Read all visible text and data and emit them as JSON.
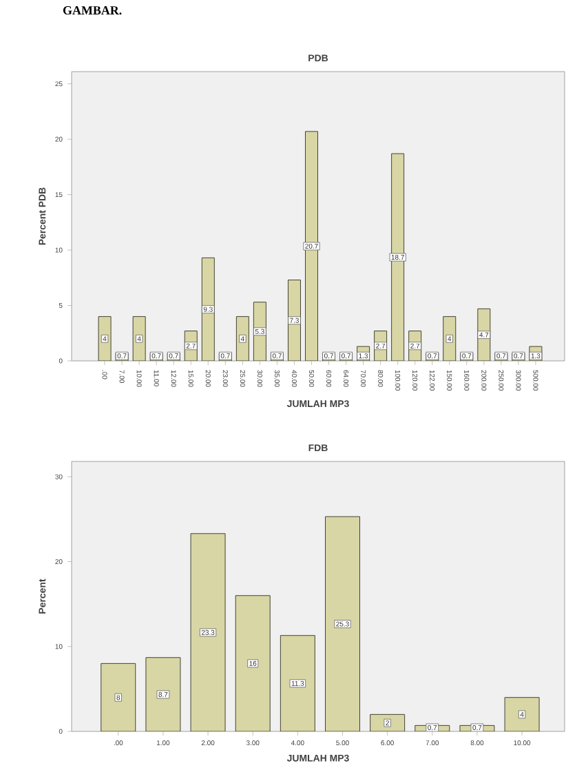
{
  "chart_data": [
    {
      "type": "bar",
      "title": "PDB",
      "xlabel": "JUMLAH MP3",
      "ylabel": "Percent PDB",
      "annotations": [
        "GAMBAR."
      ],
      "categories": [
        ".00",
        "7.00",
        "10.00",
        "11.00",
        "12.00",
        "15.00",
        "20.00",
        "23.00",
        "25.00",
        "30.00",
        "35.00",
        "40.00",
        "50.00",
        "60.00",
        "64.00",
        "70.00",
        "80.00",
        "100.00",
        "120.00",
        "122.00",
        "150.00",
        "160.00",
        "200.00",
        "250.00",
        "300.00",
        "500.00"
      ],
      "values": [
        4,
        0.7,
        4,
        0.7,
        0.7,
        2.7,
        9.3,
        0.7,
        4,
        5.3,
        0.7,
        7.3,
        20.7,
        0.7,
        0.7,
        1.3,
        2.7,
        18.7,
        2.7,
        0.7,
        4,
        0.7,
        4.7,
        0.7,
        0.7,
        1.3
      ],
      "color": "#d9d6a6",
      "ylim": [
        0,
        26.1
      ],
      "yticks": [
        0,
        5,
        10,
        15,
        20,
        25
      ],
      "data_labels": true
    },
    {
      "type": "bar",
      "title": "FDB",
      "xlabel": "JUMLAH MP3",
      "ylabel": "Percent",
      "categories": [
        ".00",
        "1.00",
        "2.00",
        "3.00",
        "4.00",
        "5.00",
        "6.00",
        "7.00",
        "8.00",
        "10.00"
      ],
      "values": [
        8,
        8.7,
        23.3,
        16,
        11.3,
        25.3,
        2,
        0.7,
        0.7,
        4
      ],
      "color": "#d9d6a6",
      "ylim": [
        0,
        31.8
      ],
      "yticks": [
        0,
        10,
        20,
        30
      ],
      "data_labels": true
    }
  ]
}
